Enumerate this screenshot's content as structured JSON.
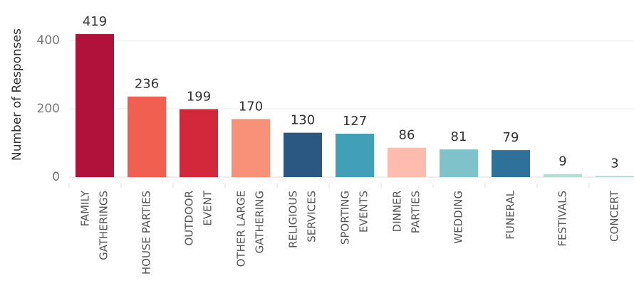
{
  "chart_data": {
    "type": "bar",
    "y_label": "Number of Responses",
    "categories": [
      [
        "FAMILY",
        "GATHERINGS"
      ],
      [
        "HOUSE PARTIES"
      ],
      [
        "OUTDOOR",
        "EVENT"
      ],
      [
        "OTHER LARGE",
        "GATHERING"
      ],
      [
        "RELIGIOUS",
        "SERVICES"
      ],
      [
        "SPORTING",
        "EVENTS"
      ],
      [
        "DINNER",
        "PARTIES"
      ],
      [
        "WEDDING"
      ],
      [
        "FUNERAL"
      ],
      [
        "FESTIVALS"
      ],
      [
        "CONCERT"
      ]
    ],
    "values": [
      419,
      236,
      199,
      170,
      130,
      127,
      86,
      81,
      79,
      9,
      3
    ],
    "colors": [
      "#b0123b",
      "#f15f50",
      "#d3283c",
      "#f99078",
      "#2b5783",
      "#419fb8",
      "#fdbcae",
      "#7fc2ca",
      "#2e729a",
      "#b6dfd4",
      "#a6d6da"
    ],
    "ylim": [
      0,
      480
    ],
    "yticks": [
      0,
      200,
      400
    ],
    "grid": true
  }
}
